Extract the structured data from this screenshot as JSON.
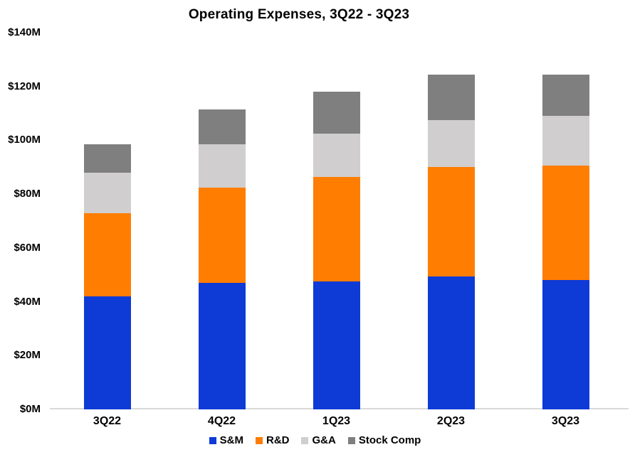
{
  "chart_data": {
    "type": "bar",
    "stacked": true,
    "title": "Operating Expenses, 3Q22 - 3Q23",
    "categories": [
      "3Q22",
      "4Q22",
      "1Q23",
      "2Q23",
      "3Q23"
    ],
    "series": [
      {
        "name": "S&M",
        "color": "#0E3AD6",
        "values": [
          42,
          47,
          47.5,
          49.5,
          48
        ]
      },
      {
        "name": "R&D",
        "color": "#FF7D00",
        "values": [
          31,
          35.5,
          39,
          40.5,
          42.5
        ]
      },
      {
        "name": "G&A",
        "color": "#D0CECE",
        "values": [
          15,
          16,
          16,
          17.5,
          18.5
        ]
      },
      {
        "name": "Stock Comp",
        "color": "#7F7F7F",
        "values": [
          10.5,
          13,
          15.5,
          17,
          15.5
        ]
      }
    ],
    "xlabel": "",
    "ylabel": "",
    "ylim": [
      0,
      140
    ],
    "ytick_step": 20,
    "ytick_labels": [
      "$0M",
      "$20M",
      "$40M",
      "$60M",
      "$80M",
      "$100M",
      "$120M",
      "$140M"
    ],
    "grid": false,
    "legend_position": "bottom",
    "axis_line_color": "#D9D9D9",
    "text_color": "#000000",
    "background_color": "#FFFFFF"
  }
}
